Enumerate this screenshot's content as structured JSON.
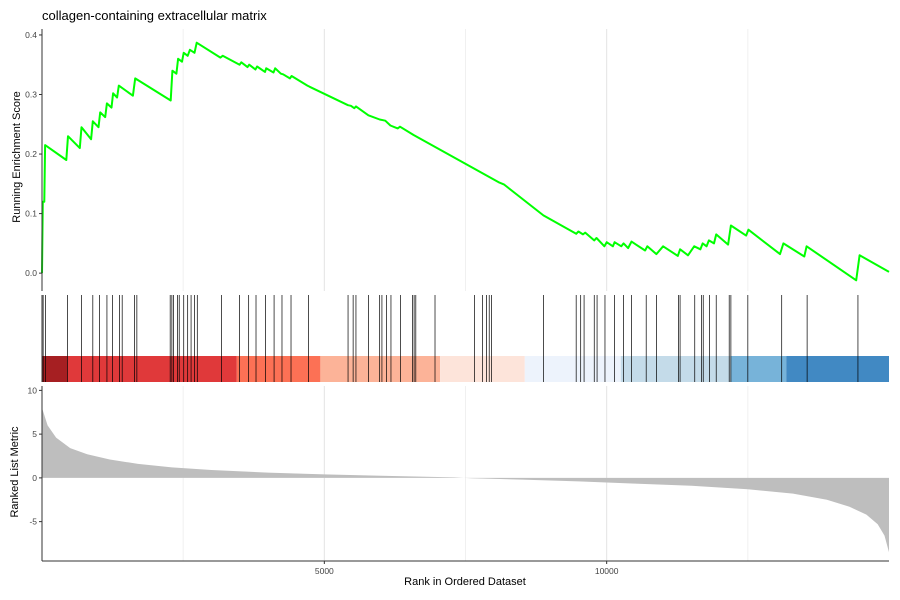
{
  "chart_data": {
    "type": "line",
    "title": "collagen-containing extracellular matrix",
    "xlabel": "Rank in Ordered Dataset",
    "xlim": [
      0,
      15000
    ],
    "x_ticks": [
      5000,
      10000
    ],
    "grid": "vertical only",
    "running_score": {
      "ylabel": "Running Enrichment Score",
      "ylim": [
        -0.03,
        0.41
      ],
      "y_ticks": [
        0.0,
        0.1,
        0.2,
        0.3,
        0.4
      ],
      "line_color": "#00ff00",
      "points": [
        [
          0,
          0.0
        ],
        [
          15,
          0.12
        ],
        [
          40,
          0.12
        ],
        [
          55,
          0.215
        ],
        [
          430,
          0.19
        ],
        [
          460,
          0.23
        ],
        [
          670,
          0.21
        ],
        [
          700,
          0.245
        ],
        [
          870,
          0.225
        ],
        [
          900,
          0.255
        ],
        [
          1000,
          0.245
        ],
        [
          1030,
          0.27
        ],
        [
          1120,
          0.262
        ],
        [
          1150,
          0.285
        ],
        [
          1230,
          0.278
        ],
        [
          1260,
          0.302
        ],
        [
          1330,
          0.295
        ],
        [
          1360,
          0.315
        ],
        [
          1610,
          0.298
        ],
        [
          1650,
          0.327
        ],
        [
          2280,
          0.29
        ],
        [
          2310,
          0.34
        ],
        [
          2380,
          0.335
        ],
        [
          2410,
          0.36
        ],
        [
          2480,
          0.355
        ],
        [
          2510,
          0.37
        ],
        [
          2580,
          0.365
        ],
        [
          2620,
          0.375
        ],
        [
          2700,
          0.37
        ],
        [
          2740,
          0.387
        ],
        [
          3160,
          0.362
        ],
        [
          3200,
          0.365
        ],
        [
          3500,
          0.35
        ],
        [
          3530,
          0.354
        ],
        [
          3640,
          0.346
        ],
        [
          3670,
          0.35
        ],
        [
          3780,
          0.342
        ],
        [
          3810,
          0.347
        ],
        [
          3950,
          0.338
        ],
        [
          3970,
          0.344
        ],
        [
          4100,
          0.337
        ],
        [
          4130,
          0.344
        ],
        [
          4230,
          0.335
        ],
        [
          4270,
          0.334
        ],
        [
          4390,
          0.327
        ],
        [
          4420,
          0.331
        ],
        [
          4700,
          0.315
        ],
        [
          4740,
          0.313
        ],
        [
          5420,
          0.282
        ],
        [
          5470,
          0.281
        ],
        [
          5530,
          0.277
        ],
        [
          5560,
          0.28
        ],
        [
          5780,
          0.265
        ],
        [
          5980,
          0.258
        ],
        [
          6080,
          0.256
        ],
        [
          6170,
          0.248
        ],
        [
          6300,
          0.243
        ],
        [
          6340,
          0.246
        ],
        [
          6580,
          0.232
        ],
        [
          8100,
          0.152
        ],
        [
          8180,
          0.149
        ],
        [
          8880,
          0.097
        ],
        [
          9460,
          0.066
        ],
        [
          9500,
          0.07
        ],
        [
          9580,
          0.065
        ],
        [
          9620,
          0.068
        ],
        [
          9780,
          0.055
        ],
        [
          9820,
          0.059
        ],
        [
          9960,
          0.045
        ],
        [
          10000,
          0.052
        ],
        [
          10110,
          0.045
        ],
        [
          10140,
          0.052
        ],
        [
          10260,
          0.045
        ],
        [
          10300,
          0.05
        ],
        [
          10380,
          0.042
        ],
        [
          10440,
          0.053
        ],
        [
          10680,
          0.038
        ],
        [
          10720,
          0.045
        ],
        [
          10880,
          0.032
        ],
        [
          11000,
          0.045
        ],
        [
          11260,
          0.029
        ],
        [
          11300,
          0.04
        ],
        [
          11440,
          0.03
        ],
        [
          11550,
          0.045
        ],
        [
          11660,
          0.04
        ],
        [
          11700,
          0.05
        ],
        [
          11770,
          0.045
        ],
        [
          11810,
          0.055
        ],
        [
          11900,
          0.05
        ],
        [
          11940,
          0.065
        ],
        [
          12150,
          0.048
        ],
        [
          12200,
          0.08
        ],
        [
          12470,
          0.063
        ],
        [
          12510,
          0.073
        ],
        [
          13070,
          0.032
        ],
        [
          13130,
          0.05
        ],
        [
          13500,
          0.028
        ],
        [
          13540,
          0.045
        ],
        [
          14420,
          -0.012
        ],
        [
          14480,
          0.03
        ],
        [
          15000,
          0.002
        ]
      ]
    },
    "gene_hits": [
      20,
      60,
      450,
      700,
      900,
      1020,
      1150,
      1250,
      1370,
      1420,
      1640,
      1680,
      2270,
      2300,
      2330,
      2400,
      2430,
      2510,
      2580,
      2640,
      2700,
      2750,
      3180,
      3500,
      3660,
      3790,
      3960,
      4110,
      4250,
      4410,
      4720,
      5420,
      5510,
      5560,
      5780,
      5980,
      6020,
      6100,
      6180,
      6350,
      6560,
      6590,
      6620,
      6960,
      7660,
      7800,
      7870,
      7920,
      7960,
      8880,
      9460,
      9540,
      9600,
      9780,
      9830,
      9970,
      10140,
      10300,
      10440,
      10700,
      10880,
      11270,
      11300,
      11560,
      11680,
      11710,
      11820,
      11940,
      12170,
      12200,
      12500,
      13100,
      13550,
      14450
    ],
    "rank_color_bar": {
      "segments": [
        {
          "start": 0,
          "end": 450,
          "color": "#a61f22"
        },
        {
          "start": 450,
          "end": 3450,
          "color": "#e0393a"
        },
        {
          "start": 3450,
          "end": 4930,
          "color": "#fc7155"
        },
        {
          "start": 4930,
          "end": 7050,
          "color": "#fcb398"
        },
        {
          "start": 7050,
          "end": 8550,
          "color": "#fde4da"
        },
        {
          "start": 8550,
          "end": 10250,
          "color": "#edf3fc"
        },
        {
          "start": 10250,
          "end": 12200,
          "color": "#c4dbe9"
        },
        {
          "start": 12200,
          "end": 13180,
          "color": "#77b3d9"
        },
        {
          "start": 13180,
          "end": 15000,
          "color": "#4189c3"
        }
      ]
    },
    "ranked_list_metric": {
      "ylabel": "Ranked List Metric",
      "ylim": [
        -9.5,
        10.5
      ],
      "y_ticks": [
        -5,
        0,
        5,
        10
      ],
      "fill_color": "#bebebe",
      "points": [
        [
          0,
          8.0
        ],
        [
          100,
          6.0
        ],
        [
          250,
          4.6
        ],
        [
          500,
          3.4
        ],
        [
          800,
          2.7
        ],
        [
          1200,
          2.1
        ],
        [
          1700,
          1.6
        ],
        [
          2300,
          1.2
        ],
        [
          3000,
          0.9
        ],
        [
          4000,
          0.6
        ],
        [
          5000,
          0.4
        ],
        [
          6000,
          0.25
        ],
        [
          7000,
          0.1
        ],
        [
          7300,
          0.05
        ],
        [
          7600,
          -0.05
        ],
        [
          8500,
          -0.2
        ],
        [
          9500,
          -0.4
        ],
        [
          10500,
          -0.65
        ],
        [
          11500,
          -0.9
        ],
        [
          12500,
          -1.3
        ],
        [
          13300,
          -1.8
        ],
        [
          13900,
          -2.5
        ],
        [
          14300,
          -3.3
        ],
        [
          14600,
          -4.2
        ],
        [
          14800,
          -5.3
        ],
        [
          14920,
          -6.6
        ],
        [
          15000,
          -8.5
        ]
      ]
    }
  }
}
